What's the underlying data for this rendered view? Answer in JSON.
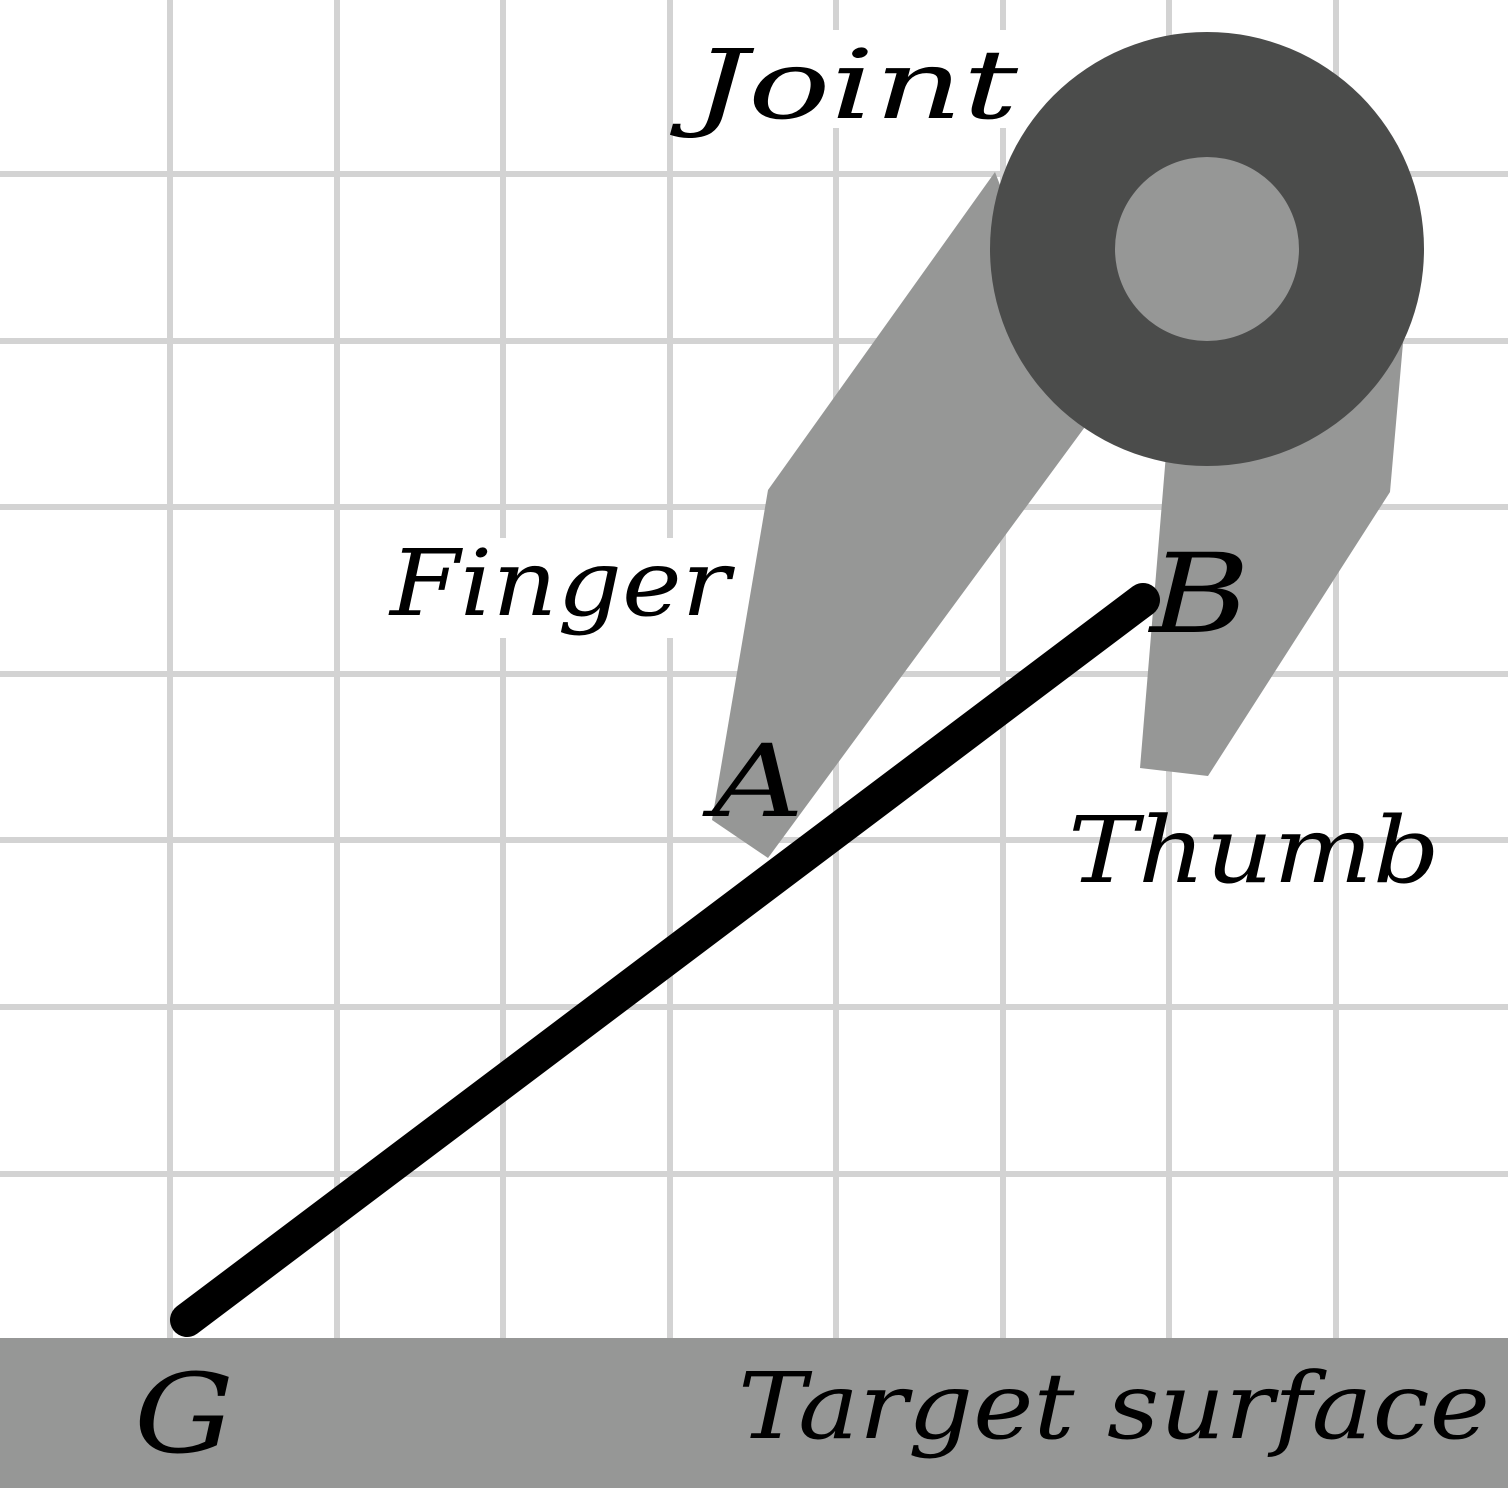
{
  "labels": {
    "joint": "Joint",
    "finger": "Finger",
    "thumb": "Thumb",
    "point_a": "A",
    "point_b": "B",
    "point_g": "G",
    "target_surface": "Target surface"
  },
  "colors": {
    "background": "#ffffff",
    "grid": "#d3d3d3",
    "surface": "#969796",
    "gripper_light": "#969796",
    "gripper_dark": "#4b4c4b",
    "rod": "#000000",
    "text": "#000000"
  }
}
